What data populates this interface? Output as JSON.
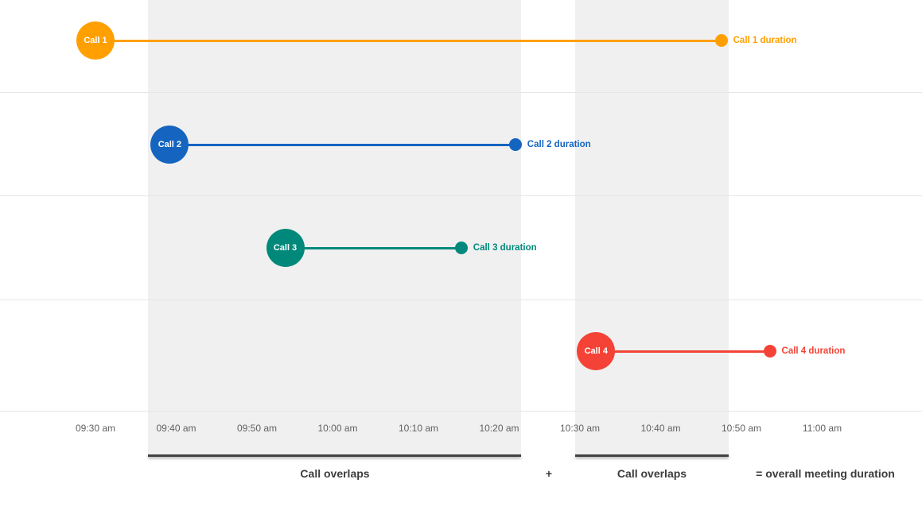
{
  "chart_data": {
    "type": "timeline",
    "title": "",
    "minutes_origin": "09:30 am",
    "x_axis": {
      "tick_labels": [
        "09:30 am",
        "09:40 am",
        "09:50 am",
        "10:00 am",
        "10:10 am",
        "10:20 am",
        "10:30 am",
        "10:40 am",
        "10:50 am",
        "11:00 am"
      ],
      "tick_minutes": [
        0,
        10,
        20,
        30,
        40,
        50,
        60,
        70,
        80,
        90
      ],
      "range_minutes": [
        -12,
        102
      ],
      "grid": true
    },
    "calls": [
      {
        "label": "Call 1",
        "duration_label": "Call 1 duration",
        "color": "#FFA000",
        "start_min": 0,
        "end_min": 77.5
      },
      {
        "label": "Call 2",
        "duration_label": "Call 2 duration",
        "color": "#1565C0",
        "start_min": 9.2,
        "end_min": 52
      },
      {
        "label": "Call 3",
        "duration_label": "Call 3 duration",
        "color": "#00897B",
        "start_min": 23.5,
        "end_min": 45.3
      },
      {
        "label": "Call 4",
        "duration_label": "Call 4 duration",
        "color": "#F44336",
        "start_min": 62,
        "end_min": 83.5
      }
    ],
    "overlap_regions": [
      {
        "start_min": 6.5,
        "end_min": 52.7
      },
      {
        "start_min": 59.4,
        "end_min": 78.4
      }
    ],
    "annotations": {
      "overlap1_label": "Call overlaps",
      "plus": "+",
      "overlap2_label": "Call overlaps",
      "equals_label": "= overall meeting duration"
    },
    "region_color": "#f0f0f0",
    "underline_color": "#424242"
  }
}
